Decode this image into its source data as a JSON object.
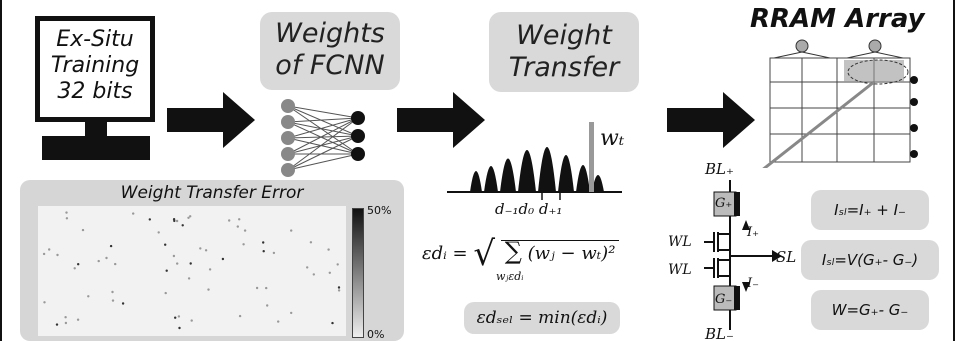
{
  "monitor": {
    "lines": [
      "Ex-Situ",
      "Training",
      "32 bits"
    ]
  },
  "boxes": {
    "weights": [
      "Weights",
      "of FCNN"
    ],
    "transfer": [
      "Weight",
      "Transfer"
    ]
  },
  "dist": {
    "wt_label": "wₜ",
    "d_labels": "d₋₁d₀ d₊₁"
  },
  "equations": {
    "eps_lhs": "εdᵢ =",
    "eps_rhs": "(wⱼ − wₜ)²",
    "sum_sub": "wⱼεdᵢ",
    "eps_sel": "εdₛₑₗ = min(εdᵢ)"
  },
  "error_panel": {
    "title": "Weight Transfer Error",
    "colorbar_max": "50%",
    "colorbar_min": "0%"
  },
  "rram": {
    "title": "RRAM Array"
  },
  "cell": {
    "bl_plus": "BL₊",
    "bl_minus": "BL₋",
    "g_plus": "G₊",
    "g_minus": "G₋",
    "i_plus": "I₊",
    "i_minus": "I₋",
    "wl": "WL",
    "sl": "SL"
  },
  "formulas": {
    "isl_sum": "Iₛₗ=I₊ + I₋",
    "isl_v": "Iₛₗ=V(G₊- G₋)",
    "w": "W=G₊- G₋"
  },
  "colors": {
    "box_gray": "#d9d9d9",
    "ink": "#111111"
  }
}
